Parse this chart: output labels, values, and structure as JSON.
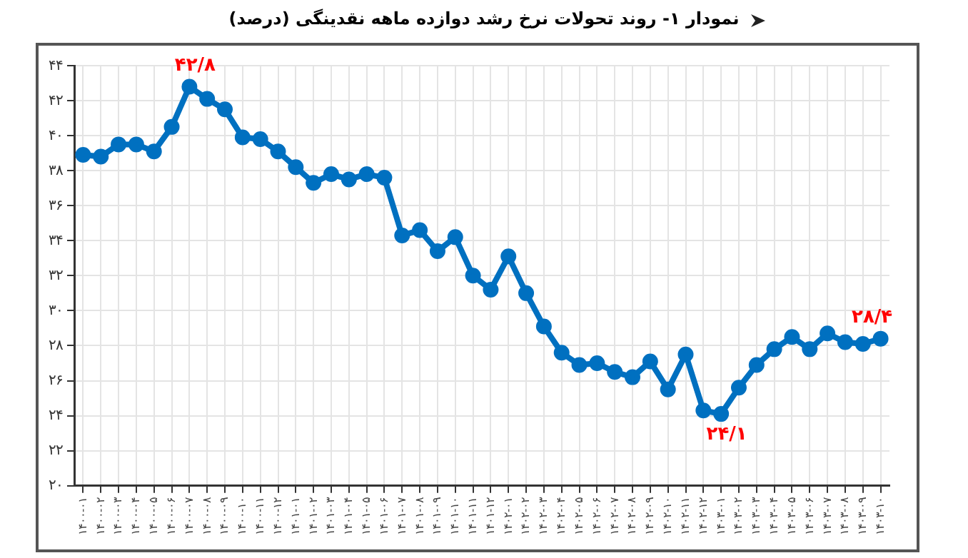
{
  "chart_data": {
    "type": "line",
    "title": "نمودار ۱- روند تحولات نرخ رشد دوازده ماهه نقدینگی (درصد)",
    "categories": [
      "۱۴۰۰-۰۱",
      "۱۴۰۰-۰۲",
      "۱۴۰۰-۰۳",
      "۱۴۰۰-۰۴",
      "۱۴۰۰-۰۵",
      "۱۴۰۰-۰۶",
      "۱۴۰۰-۰۷",
      "۱۴۰۰-۰۸",
      "۱۴۰۰-۰۹",
      "۱۴۰۰-۱۰",
      "۱۴۰۰-۱۱",
      "۱۴۰۰-۱۲",
      "۱۴۰۱-۰۱",
      "۱۴۰۱-۰۲",
      "۱۴۰۱-۰۳",
      "۱۴۰۱-۰۴",
      "۱۴۰۱-۰۵",
      "۱۴۰۱-۰۶",
      "۱۴۰۱-۰۷",
      "۱۴۰۱-۰۸",
      "۱۴۰۱-۰۹",
      "۱۴۰۱-۱۰",
      "۱۴۰۱-۱۱",
      "۱۴۰۱-۱۲",
      "۱۴۰۲-۰۱",
      "۱۴۰۲-۰۲",
      "۱۴۰۲-۰۳",
      "۱۴۰۲-۰۴",
      "۱۴۰۲-۰۵",
      "۱۴۰۲-۰۶",
      "۱۴۰۲-۰۷",
      "۱۴۰۲-۰۸",
      "۱۴۰۲-۰۹",
      "۱۴۰۲-۱۰",
      "۱۴۰۲-۱۱",
      "۱۴۰۲-۱۲",
      "۱۴۰۳-۰۱",
      "۱۴۰۳-۰۲",
      "۱۴۰۳-۰۳",
      "۱۴۰۳-۰۴",
      "۱۴۰۳-۰۵",
      "۱۴۰۳-۰۶",
      "۱۴۰۳-۰۷",
      "۱۴۰۳-۰۸",
      "۱۴۰۳-۰۹",
      "۱۴۰۳-۱۰"
    ],
    "series": [
      {
        "color": "#0070c0",
        "values": [
          38.9,
          38.8,
          39.5,
          39.5,
          39.1,
          40.5,
          42.8,
          42.1,
          41.5,
          39.9,
          39.8,
          39.1,
          38.2,
          37.3,
          37.8,
          37.5,
          37.8,
          37.6,
          34.3,
          34.6,
          33.4,
          34.2,
          32.0,
          31.2,
          33.1,
          31.0,
          29.1,
          27.6,
          26.9,
          27.0,
          26.5,
          26.2,
          27.1,
          25.5,
          27.5,
          24.3,
          24.1,
          25.6,
          26.9,
          27.8,
          28.5,
          27.8,
          28.7,
          28.2,
          28.1,
          28.4
        ]
      }
    ],
    "ylim": [
      20,
      44
    ],
    "yticks": [
      {
        "value": 20,
        "label": "۲۰"
      },
      {
        "value": 22,
        "label": "۲۲"
      },
      {
        "value": 24,
        "label": "۲۴"
      },
      {
        "value": 26,
        "label": "۲۶"
      },
      {
        "value": 28,
        "label": "۲۸"
      },
      {
        "value": 30,
        "label": "۳۰"
      },
      {
        "value": 32,
        "label": "۳۲"
      },
      {
        "value": 34,
        "label": "۳۴"
      },
      {
        "value": 36,
        "label": "۳۶"
      },
      {
        "value": 38,
        "label": "۳۸"
      },
      {
        "value": 40,
        "label": "۴۰"
      },
      {
        "value": 42,
        "label": "۴۲"
      },
      {
        "value": 44,
        "label": "۴۴"
      }
    ],
    "annotations": [
      {
        "text": "۴۲/۸",
        "x": "۱۴۰۰-۰۷",
        "y": 42.8
      },
      {
        "text": "۲۴/۱",
        "x": "۱۴۰۳-۰۱",
        "y": 24.1
      },
      {
        "text": "۲۸/۴",
        "x": "۱۴۰۳-۱۰",
        "y": 28.4
      }
    ],
    "grid": true,
    "marker": "circle",
    "line_style": "solid",
    "legend": false
  }
}
